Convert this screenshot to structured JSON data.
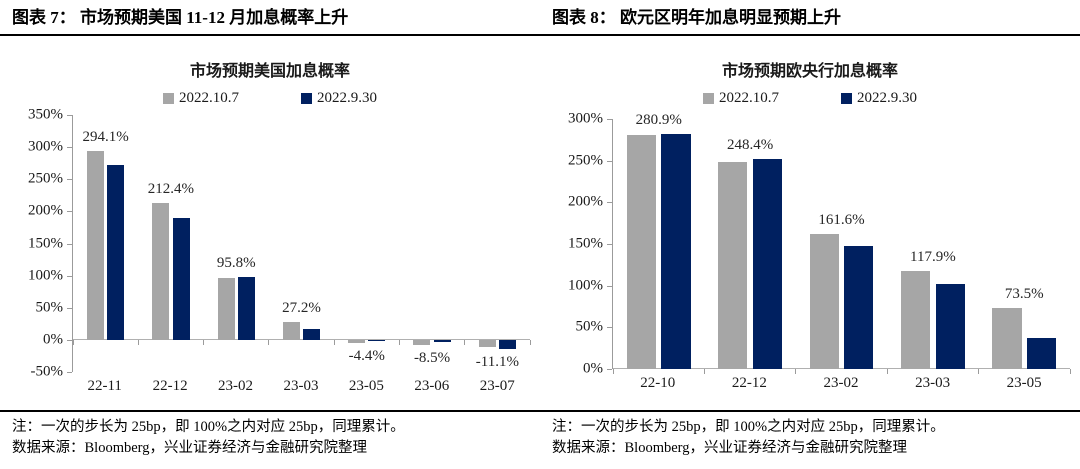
{
  "figure_headers": [
    "图表 7： 市场预期美国 11-12 月加息概率上升",
    "图表 8： 欧元区明年加息明显预期上升"
  ],
  "chart_data": [
    {
      "type": "bar",
      "title": "市场预期美国加息概率",
      "categories": [
        "22-11",
        "22-12",
        "23-02",
        "23-03",
        "23-05",
        "23-06",
        "23-07"
      ],
      "series": [
        {
          "name": "2022.10.7",
          "color": "#A6A6A6",
          "values": [
            294.1,
            212.4,
            95.8,
            27.2,
            -4.4,
            -8.5,
            -11.1
          ]
        },
        {
          "name": "2022.9.30",
          "color": "#002060",
          "values": [
            272.5,
            189.0,
            98.5,
            17.5,
            -2.0,
            -4.0,
            -13.5
          ]
        }
      ],
      "data_labels": [
        "294.1%",
        "212.4%",
        "95.8%",
        "27.2%",
        "-4.4%",
        "-8.5%",
        "-11.1%"
      ],
      "data_labels_series": "2022.10.7",
      "ylim": [
        -50,
        350
      ],
      "yticks": [
        "350%",
        "300%",
        "250%",
        "200%",
        "150%",
        "100%",
        "50%",
        "0%",
        "-50%"
      ],
      "legend_position": "top",
      "grid": false
    },
    {
      "type": "bar",
      "title": "市场预期欧央行加息概率",
      "categories": [
        "22-10",
        "22-12",
        "23-02",
        "23-03",
        "23-05"
      ],
      "series": [
        {
          "name": "2022.10.7",
          "color": "#A6A6A6",
          "values": [
            280.9,
            248.4,
            161.6,
            117.9,
            73.5
          ]
        },
        {
          "name": "2022.9.30",
          "color": "#002060",
          "values": [
            281.5,
            251.5,
            148.0,
            102.0,
            37.0
          ]
        }
      ],
      "data_labels": [
        "280.9%",
        "248.4%",
        "161.6%",
        "117.9%",
        "73.5%"
      ],
      "data_labels_series": "2022.10.7",
      "ylim": [
        0,
        300
      ],
      "yticks": [
        "300%",
        "250%",
        "200%",
        "150%",
        "100%",
        "50%",
        "0%"
      ],
      "legend_position": "top",
      "grid": false
    }
  ],
  "notes": [
    {
      "note": "注：一次的步长为 25bp，即 100%之内对应 25bp，同理累计。",
      "source": "数据来源：Bloomberg，兴业证券经济与金融研究院整理"
    },
    {
      "note": "注：一次的步长为 25bp，即 100%之内对应 25bp，同理累计。",
      "source": "数据来源：Bloomberg，兴业证券经济与金融研究院整理"
    }
  ]
}
